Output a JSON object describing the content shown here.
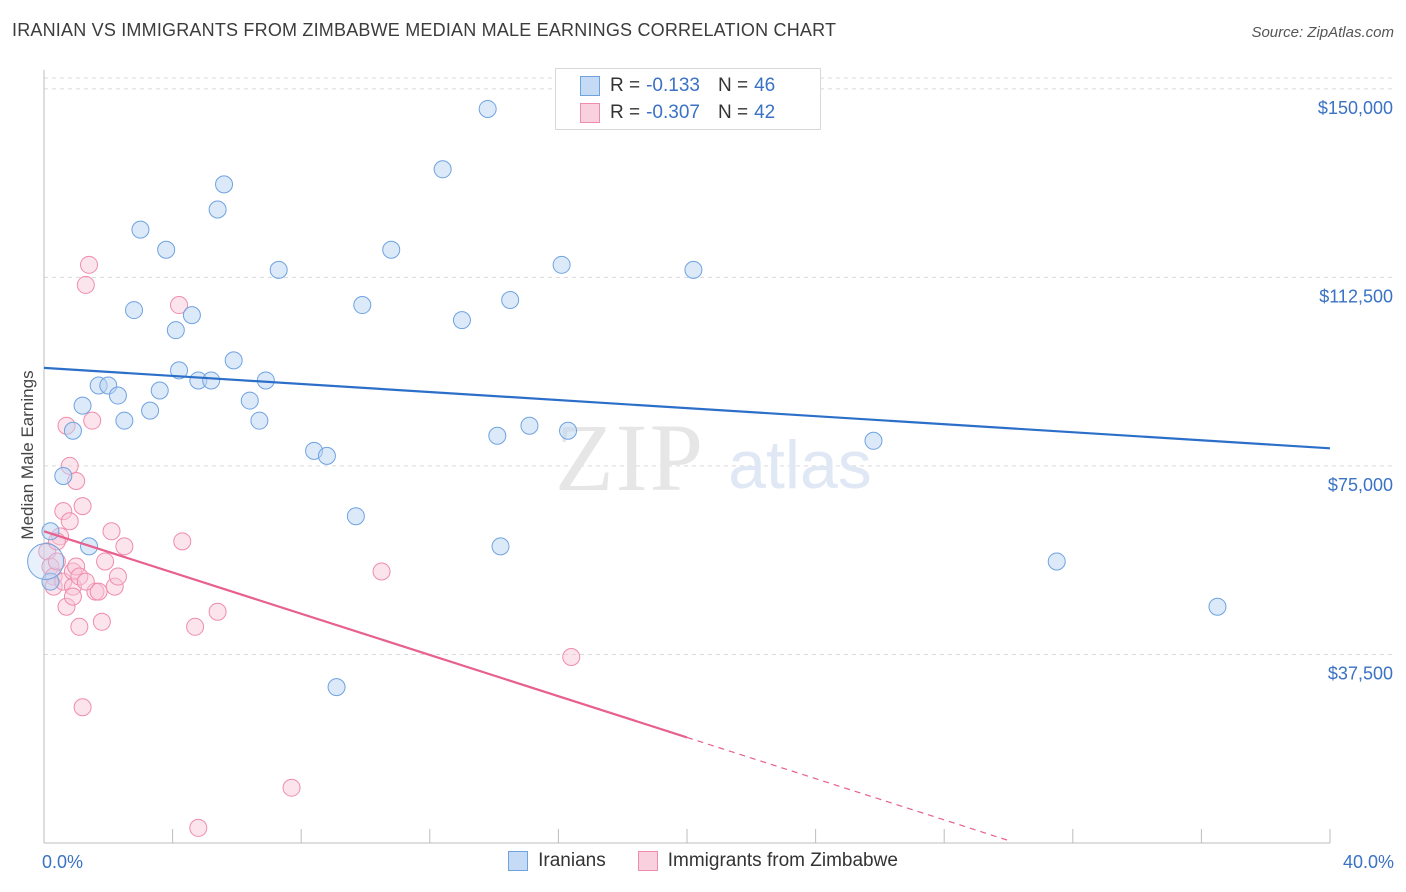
{
  "title": "IRANIAN VS IMMIGRANTS FROM ZIMBABWE MEDIAN MALE EARNINGS CORRELATION CHART",
  "source": "Source: ZipAtlas.com",
  "watermark": {
    "zip": "ZIP",
    "atlas": "atlas"
  },
  "legend_top": {
    "rows": [
      {
        "r_label": "R =",
        "r_value": "-0.133",
        "n_label": "N =",
        "n_value": "46"
      },
      {
        "r_label": "R =",
        "r_value": "-0.307",
        "n_label": "N =",
        "n_value": "42"
      }
    ]
  },
  "chart_data": {
    "type": "scatter",
    "title": "IRANIAN VS IMMIGRANTS FROM ZIMBABWE MEDIAN MALE EARNINGS CORRELATION CHART",
    "xlabel": "",
    "ylabel": "Median Male Earnings",
    "xlim": [
      0,
      40
    ],
    "ylim": [
      0,
      153750
    ],
    "x_tick_labels": [
      "0.0%",
      "40.0%"
    ],
    "y_ticks": [
      37500,
      75000,
      112500,
      150000
    ],
    "y_tick_labels": [
      "$37,500",
      "$75,000",
      "$112,500",
      "$150,000"
    ],
    "grid": true,
    "legend_placement": "bottom",
    "colors": {
      "iranians": "#6fa3e0",
      "zimbabwe": "#f08cab",
      "iranians_line": "#2c6fc9",
      "zimbabwe_line": "#e8608e"
    },
    "series": [
      {
        "name": "Iranians",
        "color": "#6fa3e0",
        "points": [
          [
            0.2,
            62000
          ],
          [
            0.2,
            52000
          ],
          [
            0.6,
            73000
          ],
          [
            0.9,
            82000
          ],
          [
            1.2,
            87000
          ],
          [
            1.4,
            59000
          ],
          [
            1.7,
            91000
          ],
          [
            2.0,
            91000
          ],
          [
            2.3,
            89000
          ],
          [
            2.5,
            84000
          ],
          [
            2.8,
            106000
          ],
          [
            3.0,
            122000
          ],
          [
            3.3,
            86000
          ],
          [
            3.6,
            90000
          ],
          [
            3.8,
            118000
          ],
          [
            4.1,
            102000
          ],
          [
            4.2,
            94000
          ],
          [
            4.6,
            105000
          ],
          [
            4.8,
            92000
          ],
          [
            5.2,
            92000
          ],
          [
            5.4,
            126000
          ],
          [
            5.6,
            131000
          ],
          [
            5.9,
            96000
          ],
          [
            6.4,
            88000
          ],
          [
            6.7,
            84000
          ],
          [
            6.9,
            92000
          ],
          [
            7.3,
            114000
          ],
          [
            8.4,
            78000
          ],
          [
            8.8,
            77000
          ],
          [
            9.1,
            31000
          ],
          [
            9.7,
            65000
          ],
          [
            9.9,
            107000
          ],
          [
            10.8,
            118000
          ],
          [
            12.4,
            134000
          ],
          [
            13.0,
            104000
          ],
          [
            13.8,
            146000
          ],
          [
            14.1,
            81000
          ],
          [
            14.2,
            59000
          ],
          [
            14.5,
            108000
          ],
          [
            15.1,
            83000
          ],
          [
            16.1,
            115000
          ],
          [
            16.3,
            82000
          ],
          [
            20.2,
            114000
          ],
          [
            25.8,
            80000
          ],
          [
            31.5,
            56000
          ],
          [
            36.5,
            47000
          ]
        ],
        "trend": {
          "x": [
            0,
            40
          ],
          "y": [
            94500,
            78500
          ]
        }
      },
      {
        "name": "Immigrants from Zimbabwe",
        "color": "#f08cab",
        "points": [
          [
            0.1,
            58000
          ],
          [
            0.2,
            55000
          ],
          [
            0.3,
            53000
          ],
          [
            0.3,
            51000
          ],
          [
            0.4,
            56000
          ],
          [
            0.5,
            61000
          ],
          [
            0.6,
            52000
          ],
          [
            0.6,
            66000
          ],
          [
            0.7,
            83000
          ],
          [
            0.7,
            47000
          ],
          [
            0.8,
            75000
          ],
          [
            0.8,
            64000
          ],
          [
            0.9,
            54000
          ],
          [
            0.9,
            51000
          ],
          [
            1.0,
            55000
          ],
          [
            1.0,
            72000
          ],
          [
            1.1,
            53000
          ],
          [
            1.1,
            43000
          ],
          [
            1.2,
            67000
          ],
          [
            1.2,
            27000
          ],
          [
            1.3,
            111000
          ],
          [
            1.4,
            115000
          ],
          [
            1.5,
            84000
          ],
          [
            1.6,
            50000
          ],
          [
            1.7,
            50000
          ],
          [
            1.8,
            44000
          ],
          [
            1.9,
            56000
          ],
          [
            2.1,
            62000
          ],
          [
            2.2,
            51000
          ],
          [
            2.3,
            53000
          ],
          [
            2.5,
            59000
          ],
          [
            4.2,
            107000
          ],
          [
            4.3,
            60000
          ],
          [
            4.7,
            43000
          ],
          [
            4.8,
            3000
          ],
          [
            5.4,
            46000
          ],
          [
            7.7,
            11000
          ],
          [
            10.5,
            54000
          ],
          [
            16.4,
            37000
          ],
          [
            0.9,
            49000
          ],
          [
            0.4,
            60000
          ],
          [
            1.3,
            52000
          ]
        ],
        "trend": {
          "x": [
            0,
            20
          ],
          "y": [
            62000,
            21000
          ]
        },
        "trend_dashed": {
          "x": [
            20,
            30
          ],
          "y": [
            21000,
            500
          ]
        }
      }
    ]
  },
  "bottom_legend": {
    "items": [
      "Iranians",
      "Immigrants from Zimbabwe"
    ]
  }
}
